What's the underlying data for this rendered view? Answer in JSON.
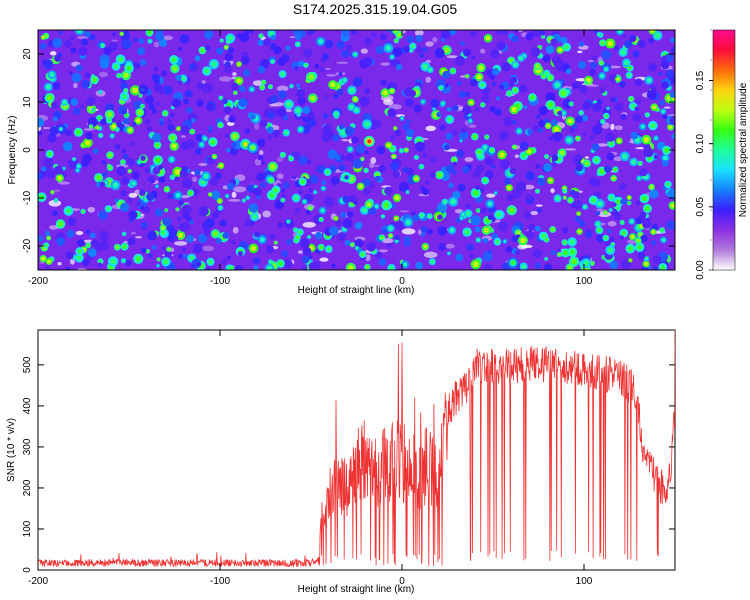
{
  "figure_title": "S174.2025.315.19.04.G05",
  "chart_data": [
    {
      "type": "heatmap",
      "title": "",
      "xlabel": "Height of straight line (km)",
      "ylabel": "Frequency (Hz)",
      "xlim": [
        -200,
        150
      ],
      "ylim": [
        -25,
        25
      ],
      "x_ticks": [
        -200,
        -100,
        0,
        100
      ],
      "x_tick_labels": [
        "-200",
        "-100",
        "0",
        "100"
      ],
      "y_ticks": [
        -20,
        -10,
        0,
        10,
        20
      ],
      "y_tick_labels": [
        "-20",
        "-10",
        "0",
        "10",
        "20"
      ],
      "colorbar": {
        "label": "Normalized spectral amplitude",
        "range": [
          0.0,
          0.19
        ],
        "ticks": [
          0.0,
          0.05,
          0.1,
          0.15
        ],
        "tick_labels": [
          "0.00",
          "0.05",
          "0.10",
          "0.15"
        ],
        "colors": [
          "#ffffff",
          "#b07ad8",
          "#8d2fe3",
          "#3a1fff",
          "#1680ff",
          "#18e0ff",
          "#1eff9a",
          "#37ff12",
          "#bfff10",
          "#ffd20e",
          "#ff6a0c",
          "#ff0c3c",
          "#ff0c90"
        ]
      },
      "hotspots": [
        {
          "x": -18,
          "y": 1.8,
          "value": 0.17
        },
        {
          "x": -86,
          "y": 1.2,
          "value": 0.14
        },
        {
          "x": -82,
          "y": 0.5,
          "value": 0.12
        },
        {
          "x": 61,
          "y": -23.5,
          "value": 0.11
        }
      ]
    },
    {
      "type": "line",
      "title": "",
      "xlabel": "Height of straight line (km)",
      "ylabel": "SNR (10 * v/v)",
      "xlim": [
        -200,
        150
      ],
      "ylim": [
        0,
        585
      ],
      "x_ticks": [
        -200,
        -100,
        0,
        100
      ],
      "x_tick_labels": [
        "-200",
        "-100",
        "0",
        "100"
      ],
      "y_ticks": [
        0,
        100,
        200,
        300,
        400,
        500
      ],
      "y_tick_labels": [
        "0",
        "100",
        "200",
        "300",
        "400",
        "500"
      ],
      "series": [
        {
          "name": "SNR",
          "color": "#ee3333",
          "x": [
            -200,
            -175,
            -150,
            -125,
            -100,
            -75,
            -60,
            -50,
            -46,
            -44,
            -40,
            -35,
            -30,
            -25,
            -20,
            -15,
            -10,
            -5,
            0,
            5,
            10,
            15,
            18,
            20,
            22,
            25,
            30,
            35,
            40,
            50,
            60,
            70,
            80,
            90,
            100,
            110,
            120,
            128,
            132,
            136,
            140,
            144,
            148,
            150
          ],
          "values": [
            20,
            20,
            20,
            20,
            20,
            20,
            20,
            20,
            25,
            130,
            200,
            230,
            220,
            260,
            300,
            260,
            280,
            290,
            300,
            280,
            260,
            290,
            250,
            230,
            300,
            380,
            420,
            440,
            500,
            500,
            495,
            505,
            500,
            495,
            490,
            480,
            470,
            440,
            310,
            260,
            210,
            200,
            230,
            510
          ]
        }
      ]
    }
  ]
}
